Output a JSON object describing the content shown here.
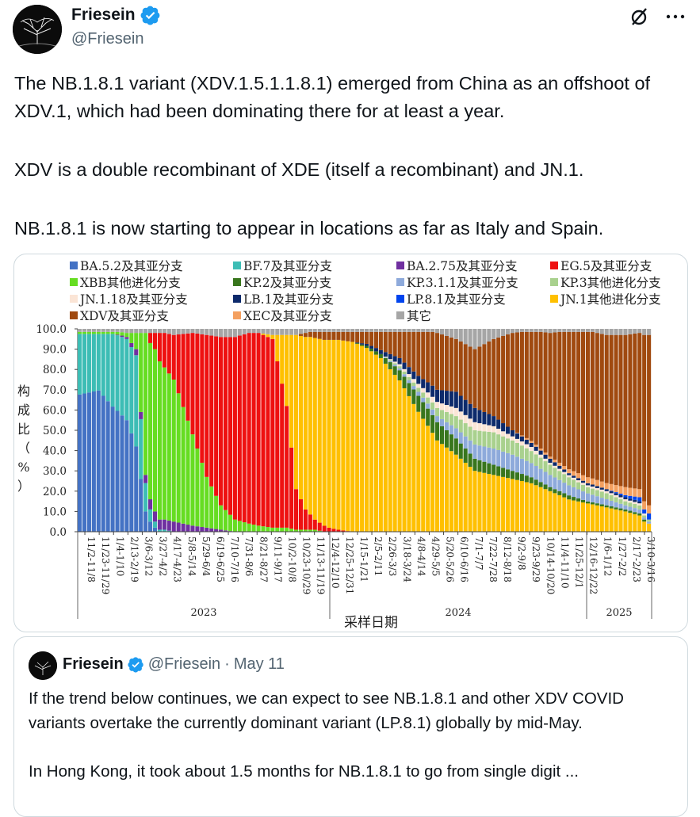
{
  "tweet": {
    "author": {
      "name": "Friesein",
      "handle": "@Friesein"
    },
    "paragraphs": [
      "The NB.1.8.1 variant (XDV.1.5.1.1.8.1) emerged from China as an offshoot of XDV.1, which had been dominating there for at least a year.",
      "XDV is a double recombinant of XDE (itself a recombinant) and JN.1.",
      "NB.1.8.1 is now starting to appear in locations as far as Italy and Spain."
    ]
  },
  "icons": {
    "grok": "slashed-circle-icon",
    "more": "more-horizontal-icon",
    "verified": "verified-badge-icon",
    "avatar": "tree-avatar-icon"
  },
  "colors": {
    "verified": "#1d9bf0",
    "text": "#0f1419",
    "secondary": "#536471",
    "border": "#cfd9de"
  },
  "chart_data": {
    "type": "area",
    "stacked": true,
    "ylabel": "构成比（%）",
    "xlabel": "采样日期",
    "ylim": [
      0,
      100
    ],
    "yticks": [
      "100.0",
      "90.0",
      "80.0",
      "70.0",
      "60.0",
      "50.0",
      "40.0",
      "30.0",
      "20.0",
      "10.0",
      "0.0"
    ],
    "x_tick_labels": [
      "11/2-11/8",
      "11/23-11/29",
      "1/4-1/10",
      "2/13-2/19",
      "3/6-3/12",
      "3/27-4/2",
      "4/17-4/23",
      "5/8-5/14",
      "5/29-6/4",
      "6/19-6/25",
      "7/10-7/16",
      "7/31-8/6",
      "8/21-8/27",
      "9/11-9/17",
      "10/2-10/8",
      "10/23-10/29",
      "11/13-11/19",
      "12/4-12/10",
      "12/25-12/31",
      "1/15-1/21",
      "2/5-2/11",
      "2/26-3/3",
      "3/18-3/24",
      "4/8-4/14",
      "4/29-5/5",
      "5/20-5/26",
      "6/10-6/16",
      "7/1-7/7",
      "7/22-7/28",
      "8/12-8/18",
      "9/2-9/8",
      "9/23-9/29",
      "10/14-10/20",
      "11/4-11/10",
      "11/25-12/1",
      "12/16-12/22",
      "1/6-1/12",
      "1/27-2/2",
      "2/17-2/23",
      "3/10-3/16"
    ],
    "year_labels": [
      "2023",
      "2024",
      "2025"
    ],
    "legend": [
      {
        "name": "BA.5.2及其亚分支",
        "color": "#4472c4"
      },
      {
        "name": "BF.7及其亚分支",
        "color": "#3dbdb5"
      },
      {
        "name": "BA.2.75及其亚分支",
        "color": "#7030a0"
      },
      {
        "name": "EG.5及其亚分支",
        "color": "#ee1111"
      },
      {
        "name": "XBB其他进化分支",
        "color": "#66dd22"
      },
      {
        "name": "KP.2及其亚分支",
        "color": "#38761d"
      },
      {
        "name": "KP.3.1.1及其亚分支",
        "color": "#8eaadb"
      },
      {
        "name": "KP.3其他进化分支",
        "color": "#a9d18e"
      },
      {
        "name": "JN.1.18及其亚分支",
        "color": "#fbe5d6"
      },
      {
        "name": "LB.1及其亚分支",
        "color": "#0d2a6b"
      },
      {
        "name": "LP.8.1及其亚分支",
        "color": "#0044ee"
      },
      {
        "name": "JN.1其他进化分支",
        "color": "#ffc000"
      },
      {
        "name": "XDV及其亚分支",
        "color": "#a04a10"
      },
      {
        "name": "XEC及其亚分支",
        "color": "#f4a060"
      },
      {
        "name": "其它",
        "color": "#a6a6a6"
      }
    ],
    "series_order": [
      "BA.5.2及其亚分支",
      "BF.7及其亚分支",
      "BA.2.75及其亚分支",
      "XBB其他进化分支",
      "EG.5及其亚分支",
      "JN.1其他进化分支",
      "KP.2及其亚分支",
      "KP.3.1.1及其亚分支",
      "KP.3其他进化分支",
      "JN.1.18及其亚分支",
      "LB.1及其亚分支",
      "LP.8.1及其亚分支",
      "XEC及其亚分支",
      "XDV及其亚分支",
      "其它"
    ],
    "weekly_keypoints": {
      "week": [
        0,
        4,
        7,
        10,
        12,
        14,
        15,
        16,
        17,
        18,
        20,
        24,
        27,
        30,
        33,
        36,
        38,
        41,
        44,
        46,
        48,
        50,
        52,
        53,
        55,
        58,
        61,
        64,
        68,
        72,
        76,
        80,
        84,
        88,
        92,
        96,
        100,
        104,
        108,
        112,
        116,
        119,
        120,
        121
      ],
      "BA.5.2及其亚分支": [
        68,
        70,
        62,
        55,
        42,
        10,
        5,
        2,
        0,
        0,
        0,
        0,
        0,
        0,
        0,
        0,
        0,
        0,
        0,
        0,
        0,
        0,
        0,
        0,
        0,
        0,
        0,
        0,
        0,
        0,
        0,
        0,
        0,
        0,
        0,
        0,
        0,
        0,
        0,
        0,
        0,
        0,
        0,
        0
      ],
      "BF.7及其亚分支": [
        30,
        28,
        36,
        40,
        45,
        14,
        6,
        3,
        1,
        1,
        0,
        0,
        0,
        0,
        0,
        0,
        0,
        0,
        0,
        0,
        0,
        0,
        0,
        0,
        0,
        0,
        0,
        0,
        0,
        0,
        0,
        0,
        0,
        0,
        0,
        0,
        0,
        0,
        0,
        0,
        0,
        0,
        0,
        0
      ],
      "BA.2.75及其亚分支": [
        0,
        0,
        0,
        1,
        3,
        4,
        5,
        5,
        5,
        5,
        5,
        3,
        2,
        1,
        0,
        0,
        0,
        0,
        0,
        0,
        0,
        0,
        0,
        0,
        0,
        0,
        0,
        0,
        0,
        0,
        0,
        0,
        0,
        0,
        0,
        0,
        0,
        0,
        0,
        0,
        0,
        0,
        0,
        0
      ],
      "XBB其他进化分支": [
        1,
        1,
        1,
        2,
        8,
        70,
        77,
        80,
        78,
        75,
        70,
        45,
        25,
        12,
        6,
        4,
        3,
        2,
        2,
        1,
        1,
        1,
        0,
        0,
        0,
        0,
        0,
        0,
        0,
        0,
        0,
        0,
        0,
        0,
        0,
        0,
        0,
        0,
        0,
        0,
        0,
        0,
        0,
        0
      ],
      "EG.5及其亚分支": [
        0,
        0,
        0,
        0,
        0,
        0,
        5,
        8,
        14,
        17,
        22,
        50,
        70,
        83,
        90,
        94,
        95,
        93,
        60,
        20,
        10,
        5,
        3,
        2,
        1,
        0,
        0,
        0,
        0,
        0,
        0,
        0,
        0,
        0,
        0,
        0,
        0,
        0,
        0,
        0,
        0,
        0,
        0,
        0
      ],
      "JN.1其他进化分支": [
        0,
        0,
        0,
        0,
        0,
        0,
        0,
        0,
        0,
        0,
        0,
        0,
        0,
        0,
        0,
        0,
        0,
        2,
        35,
        76,
        85,
        90,
        93,
        94,
        95,
        95,
        92,
        86,
        75,
        60,
        45,
        38,
        30,
        28,
        26,
        24,
        20,
        16,
        14,
        12,
        10,
        8,
        5,
        4
      ],
      "KP.2及其亚分支": [
        0,
        0,
        0,
        0,
        0,
        0,
        0,
        0,
        0,
        0,
        0,
        0,
        0,
        0,
        0,
        0,
        0,
        0,
        0,
        0,
        0,
        0,
        0,
        0,
        0,
        0,
        1,
        2,
        5,
        8,
        9,
        8,
        6,
        5,
        4,
        3,
        2,
        2,
        1,
        1,
        1,
        1,
        1,
        0
      ],
      "KP.3.1.1及其亚分支": [
        0,
        0,
        0,
        0,
        0,
        0,
        0,
        0,
        0,
        0,
        0,
        0,
        0,
        0,
        0,
        0,
        0,
        0,
        0,
        0,
        0,
        0,
        0,
        0,
        0,
        0,
        0,
        0,
        1,
        2,
        3,
        5,
        7,
        8,
        8,
        7,
        6,
        5,
        4,
        3,
        2,
        2,
        1,
        1
      ],
      "KP.3其他进化分支": [
        0,
        0,
        0,
        0,
        0,
        0,
        0,
        0,
        0,
        0,
        0,
        0,
        0,
        0,
        0,
        0,
        0,
        0,
        0,
        0,
        0,
        0,
        0,
        0,
        0,
        0,
        0,
        0,
        1,
        2,
        4,
        6,
        7,
        8,
        7,
        6,
        5,
        4,
        3,
        3,
        2,
        2,
        1,
        1
      ],
      "JN.1.18及其亚分支": [
        0,
        0,
        0,
        0,
        0,
        0,
        0,
        0,
        0,
        0,
        0,
        0,
        0,
        0,
        0,
        0,
        0,
        0,
        0,
        0,
        0,
        0,
        0,
        0,
        0,
        0,
        0,
        0,
        1,
        2,
        3,
        4,
        4,
        3,
        2,
        2,
        1,
        1,
        1,
        1,
        1,
        1,
        1,
        0
      ],
      "LB.1及其亚分支": [
        0,
        0,
        0,
        0,
        0,
        0,
        0,
        0,
        0,
        0,
        0,
        0,
        0,
        0,
        0,
        0,
        0,
        0,
        0,
        0,
        0,
        0,
        0,
        0,
        0,
        0,
        1,
        2,
        3,
        4,
        6,
        8,
        7,
        5,
        3,
        2,
        2,
        1,
        1,
        1,
        1,
        1,
        0,
        0
      ],
      "LP.8.1及其亚分支": [
        0,
        0,
        0,
        0,
        0,
        0,
        0,
        0,
        0,
        0,
        0,
        0,
        0,
        0,
        0,
        0,
        0,
        0,
        0,
        0,
        0,
        0,
        0,
        0,
        0,
        0,
        0,
        0,
        0,
        0,
        0,
        0,
        0,
        0,
        0,
        0,
        0,
        0,
        0,
        0,
        1,
        2,
        2,
        3
      ],
      "XEC及其亚分支": [
        0,
        0,
        0,
        0,
        0,
        0,
        0,
        0,
        0,
        0,
        0,
        0,
        0,
        0,
        0,
        0,
        0,
        0,
        0,
        0,
        0,
        0,
        0,
        0,
        0,
        0,
        0,
        0,
        0,
        0,
        0,
        0,
        0,
        0,
        0,
        1,
        1,
        2,
        3,
        3,
        4,
        4,
        4,
        4
      ],
      "XDV及其亚分支": [
        0,
        0,
        0,
        0,
        0,
        0,
        0,
        0,
        0,
        0,
        0,
        0,
        0,
        0,
        0,
        0,
        0,
        0,
        0,
        0,
        2,
        3,
        4,
        4,
        4,
        5,
        6,
        9,
        13,
        22,
        28,
        26,
        29,
        38,
        48,
        54,
        61,
        68,
        72,
        73,
        75,
        77,
        82,
        84
      ]
    }
  },
  "quote": {
    "author": {
      "name": "Friesein",
      "handle": "@Friesein",
      "date": "May 11",
      "separator": "·"
    },
    "paragraphs": [
      "If the trend below continues, we can expect to see NB.1.8.1 and other XDV COVID variants overtake the currently dominant variant (LP.8.1) globally by mid-May.",
      "In Hong Kong, it took about 1.5 months for NB.1.8.1 to go from single digit ..."
    ]
  }
}
